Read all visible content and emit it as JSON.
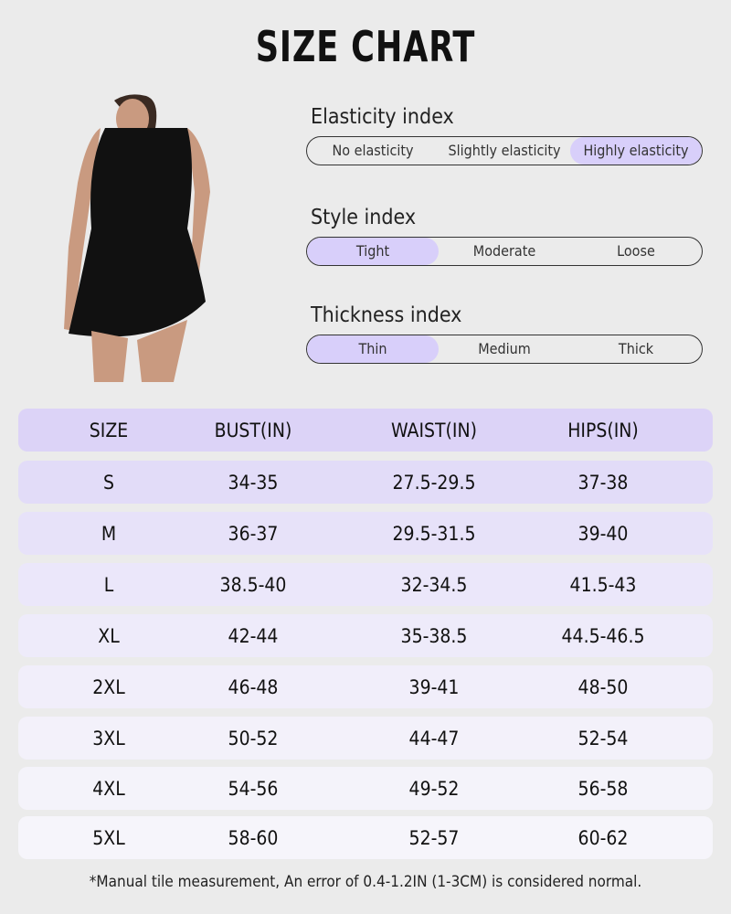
{
  "title": "SIZE CHART",
  "indices": [
    {
      "label": "Elasticity index",
      "options": [
        "No elasticity",
        "Slightly elasticity",
        "Highly elasticity"
      ],
      "selected": 2
    },
    {
      "label": "Style index",
      "options": [
        "Tight",
        "Moderate",
        "Loose"
      ],
      "selected": 0
    },
    {
      "label": "Thickness index",
      "options": [
        "Thin",
        "Medium",
        "Thick"
      ],
      "selected": 0
    }
  ],
  "table": {
    "headers": [
      "SIZE",
      "BUST(IN)",
      "WAIST(IN)",
      "HIPS(IN)"
    ],
    "rows": [
      [
        "S",
        "34-35",
        "27.5-29.5",
        "37-38"
      ],
      [
        "M",
        "36-37",
        "29.5-31.5",
        "39-40"
      ],
      [
        "L",
        "38.5-40",
        "32-34.5",
        "41.5-43"
      ],
      [
        "XL",
        "42-44",
        "35-38.5",
        "44.5-46.5"
      ],
      [
        "2XL",
        "46-48",
        "39-41",
        "48-50"
      ],
      [
        "3XL",
        "50-52",
        "44-47",
        "52-54"
      ],
      [
        "4XL",
        "54-56",
        "49-52",
        "56-58"
      ],
      [
        "5XL",
        "58-60",
        "52-57",
        "60-62"
      ]
    ]
  },
  "note": "*Manual tile measurement, An error of 0.4-1.2IN (1-3CM) is considered normal.",
  "colors": {
    "background": "#ebebeb",
    "accent": "#d8cffa",
    "header_row": "#dcd3f7"
  }
}
